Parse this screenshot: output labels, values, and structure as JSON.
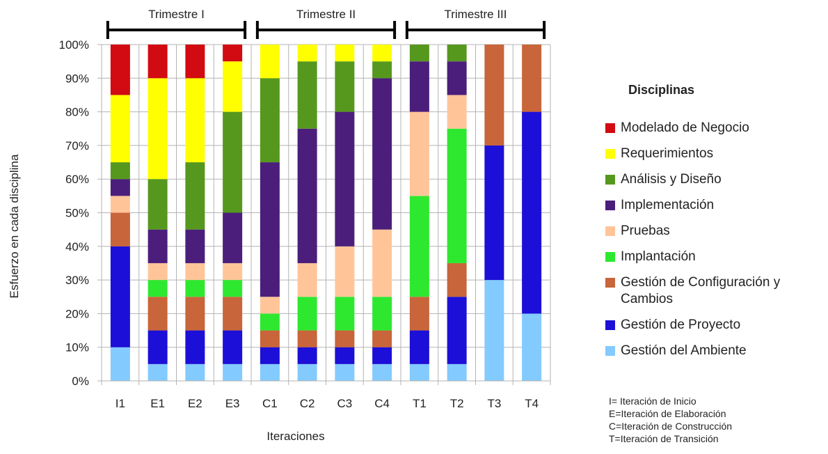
{
  "chart_data": {
    "type": "bar",
    "stacked": true,
    "xlabel": "Iteraciones",
    "ylabel": "Esfuerzo en cada disciplina",
    "ylim": [
      0,
      100
    ],
    "yticks": [
      "0%",
      "10%",
      "20%",
      "30%",
      "40%",
      "50%",
      "60%",
      "70%",
      "80%",
      "90%",
      "100%"
    ],
    "grid": true,
    "legend_position": "right",
    "legend_title": "Disciplinas",
    "categories": [
      "I1",
      "E1",
      "E2",
      "E3",
      "C1",
      "C2",
      "C3",
      "C4",
      "T1",
      "T2",
      "T3",
      "T4"
    ],
    "groups": [
      {
        "label": "Trimestre I",
        "from": "I1",
        "to": "E3"
      },
      {
        "label": "Trimestre II",
        "from": "C1",
        "to": "C4"
      },
      {
        "label": "Trimestre III",
        "from": "T1",
        "to": "T4"
      }
    ],
    "series": [
      {
        "name": "Gestión del Ambiente",
        "color": "#83caff",
        "values": [
          10,
          5,
          5,
          5,
          5,
          5,
          5,
          5,
          5,
          5,
          30,
          20
        ]
      },
      {
        "name": "Gestión de Proyecto",
        "color": "#1c0fd7",
        "values": [
          30,
          10,
          10,
          10,
          5,
          5,
          5,
          5,
          10,
          20,
          40,
          60
        ]
      },
      {
        "name": "Gestión de Configuración y Cambios",
        "color": "#c8653a",
        "values": [
          10,
          10,
          10,
          10,
          5,
          5,
          5,
          5,
          10,
          10,
          30,
          20
        ]
      },
      {
        "name": "Implantación",
        "color": "#2ee830",
        "values": [
          0,
          5,
          5,
          5,
          5,
          10,
          10,
          10,
          30,
          40,
          0,
          0
        ]
      },
      {
        "name": "Pruebas",
        "color": "#ffc599",
        "values": [
          5,
          5,
          5,
          5,
          5,
          10,
          15,
          20,
          25,
          10,
          0,
          0
        ]
      },
      {
        "name": "Implementación",
        "color": "#4b1e7b",
        "values": [
          5,
          10,
          10,
          15,
          40,
          40,
          40,
          45,
          15,
          10,
          0,
          0
        ]
      },
      {
        "name": "Análisis y Diseño",
        "color": "#56981e",
        "values": [
          5,
          15,
          20,
          30,
          25,
          20,
          15,
          5,
          5,
          5,
          0,
          0
        ]
      },
      {
        "name": "Requerimientos",
        "color": "#ffff00",
        "values": [
          20,
          30,
          25,
          15,
          10,
          5,
          5,
          5,
          0,
          0,
          0,
          0
        ]
      },
      {
        "name": "Modelado de Negocio",
        "color": "#d20a11",
        "values": [
          15,
          10,
          10,
          5,
          0,
          0,
          0,
          0,
          0,
          0,
          0,
          0
        ]
      }
    ],
    "legend_order": [
      "Modelado de Negocio",
      "Requerimientos",
      "Análisis y Diseño",
      "Implementación",
      "Pruebas",
      "Implantación",
      "Gestión de Configuración y Cambios",
      "Gestión de Proyecto",
      "Gestión del Ambiente"
    ],
    "legend_labels": [
      {
        "line1": "Modelado de Negocio",
        "line2": ""
      },
      {
        "line1": "Requerimientos",
        "line2": ""
      },
      {
        "line1": "Análisis y Diseño",
        "line2": ""
      },
      {
        "line1": "Implementación",
        "line2": ""
      },
      {
        "line1": "Pruebas",
        "line2": ""
      },
      {
        "line1": "Implantación",
        "line2": ""
      },
      {
        "line1": "Gestión de Configuración y",
        "line2": "Cambios"
      },
      {
        "line1": "Gestión de Proyecto",
        "line2": ""
      },
      {
        "line1": "Gestión del Ambiente",
        "line2": ""
      }
    ],
    "notes": [
      "I= Iteración de Inicio",
      "E=Iteración de Elaboración",
      "C=Iteración de Construcción",
      "T=Iteración de Transición"
    ]
  }
}
